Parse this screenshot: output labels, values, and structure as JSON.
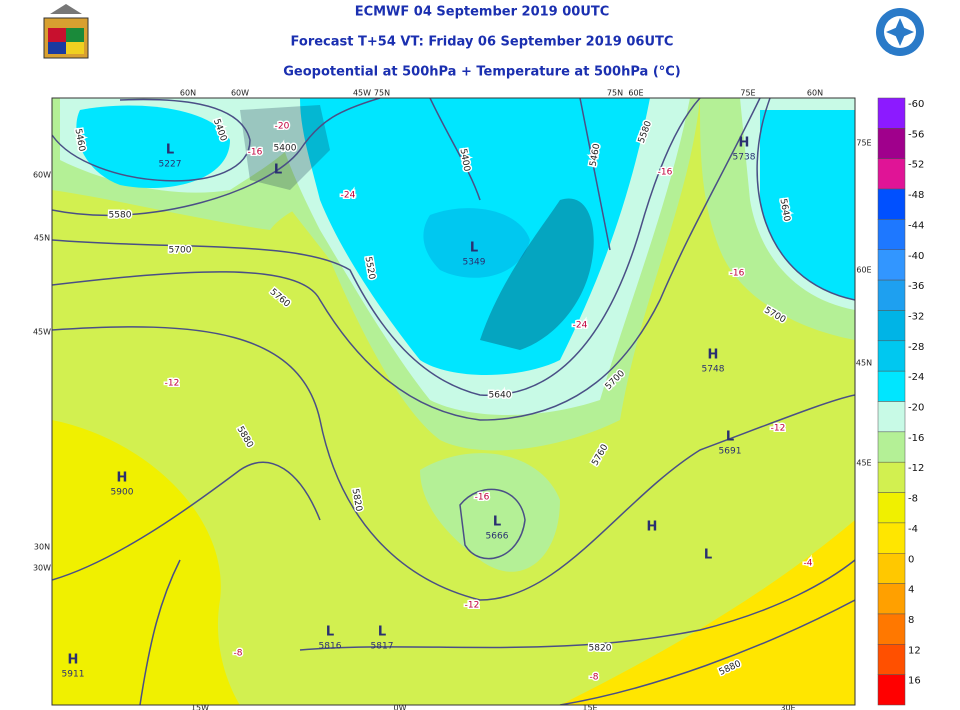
{
  "header": {
    "line1": "ECMWF 04 September 2019 00UTC",
    "line2": "Forecast T+54 VT: Friday 06 September 2019 06UTC",
    "line3": "Geopotential at 500hPa + Temperature at 500hPa (°C)"
  },
  "map": {
    "pressure_centers": [
      {
        "kind": "L",
        "value": 5227
      },
      {
        "kind": "L"
      },
      {
        "kind": "H",
        "value": 5738
      },
      {
        "kind": "L",
        "value": 5349
      },
      {
        "kind": "H",
        "value": 5748
      },
      {
        "kind": "H",
        "value": 5900
      },
      {
        "kind": "L",
        "value": 5666
      },
      {
        "kind": "L",
        "value": 5691
      },
      {
        "kind": "H"
      },
      {
        "kind": "L"
      },
      {
        "kind": "L",
        "value": 5816
      },
      {
        "kind": "L",
        "value": 5817
      },
      {
        "kind": "H",
        "value": 5911
      }
    ],
    "contour_labels": [
      5460,
      5400,
      5400,
      5580,
      5700,
      5760,
      5400,
      5520,
      5640,
      5460,
      5580,
      5700,
      5760,
      5880,
      5820,
      5640,
      5700,
      5820,
      5880
    ],
    "temperature_labels": [
      -20,
      -16,
      -24,
      -16,
      -16,
      -24,
      -12,
      -12,
      -16,
      -12,
      -8,
      -8,
      -4
    ],
    "grid_labels": [
      "60N",
      "60W",
      "45W",
      "75N",
      "75N",
      "60E",
      "75E",
      "60N",
      "60W",
      "45N",
      "45W",
      "30N",
      "30W",
      "75E",
      "60E",
      "45N",
      "45E",
      "15W",
      "0W",
      "15E",
      "30E"
    ]
  },
  "legend": {
    "levels": [
      {
        "value": -60,
        "color": "#8c1aff"
      },
      {
        "value": -56,
        "color": "#a0008c"
      },
      {
        "value": -52,
        "color": "#e01496"
      },
      {
        "value": -48,
        "color": "#0050ff"
      },
      {
        "value": -44,
        "color": "#1e78ff"
      },
      {
        "value": -40,
        "color": "#3296ff"
      },
      {
        "value": -36,
        "color": "#1ea0f0"
      },
      {
        "value": -32,
        "color": "#00b4e6"
      },
      {
        "value": -28,
        "color": "#00c8f0"
      },
      {
        "value": -24,
        "color": "#00e6ff"
      },
      {
        "value": -20,
        "color": "#c8fae6"
      },
      {
        "value": -16,
        "color": "#b4f096"
      },
      {
        "value": -12,
        "color": "#d2f050"
      },
      {
        "value": -8,
        "color": "#f0f000"
      },
      {
        "value": -4,
        "color": "#ffe600"
      },
      {
        "value": 0,
        "color": "#ffc800"
      },
      {
        "value": 4,
        "color": "#ffa000"
      },
      {
        "value": 8,
        "color": "#ff7800"
      },
      {
        "value": 12,
        "color": "#ff5000"
      },
      {
        "value": 16,
        "color": "#ff0000"
      }
    ]
  }
}
